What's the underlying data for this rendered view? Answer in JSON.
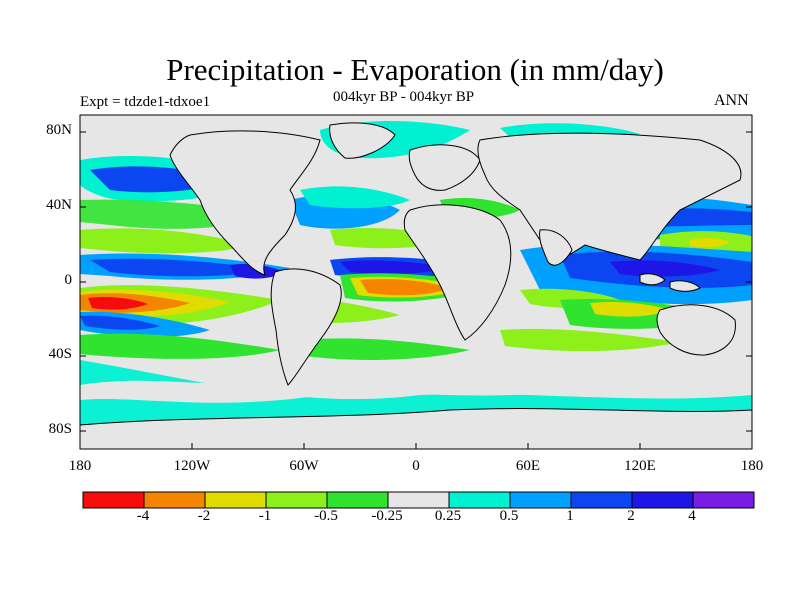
{
  "title": "Precipitation - Evaporation (in mm/day)",
  "subtitle": "004kyr BP - 004kyr BP",
  "left_label": "Expt = tdzde1-tdxoe1",
  "right_label": "ANN",
  "axes": {
    "y_ticks": [
      "80N",
      "40N",
      "0",
      "40S",
      "80S"
    ],
    "x_ticks": [
      "180",
      "120W",
      "60W",
      "0",
      "60E",
      "120E",
      "180"
    ]
  },
  "colorbar": {
    "labels": [
      "-4",
      "-2",
      "-1",
      "-0.5",
      "-0.25",
      "0.25",
      "0.5",
      "1",
      "2",
      "4"
    ],
    "colors": [
      "#f50d0d",
      "#f58500",
      "#e0dc00",
      "#8ef01a",
      "#2fe32f",
      "#e6e6e6",
      "#00f0d2",
      "#00a0ff",
      "#0c46f0",
      "#1e16e6",
      "#7a1ee6"
    ]
  },
  "colors": {
    "land": "#e6e6e6",
    "ocean_neutral": "#e6e6e6",
    "coast": "#000000"
  }
}
